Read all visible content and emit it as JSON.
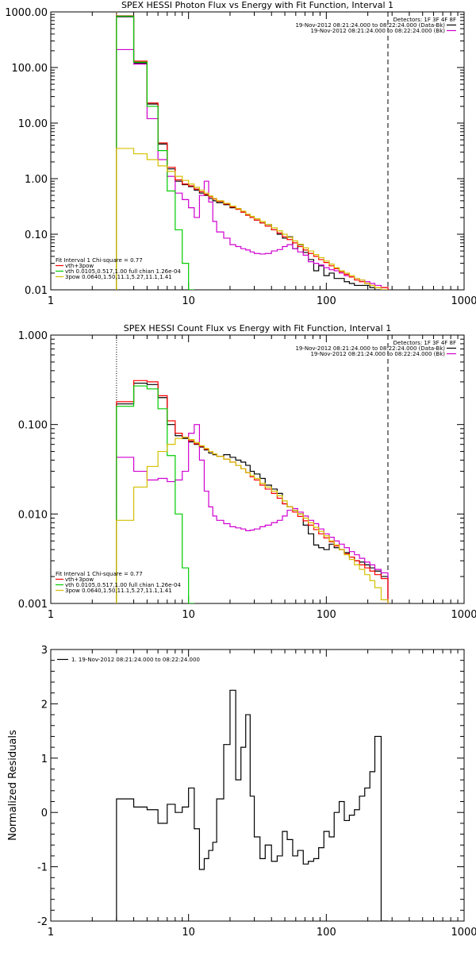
{
  "chart_data": [
    {
      "type": "line",
      "title": "SPEX HESSI Photon Flux vs Energy with Fit Function, Interval 1",
      "xlabel": "",
      "ylabel": "",
      "xscale": "log",
      "yscale": "log",
      "xlim": [
        1,
        1000
      ],
      "ylim": [
        0.01,
        1000
      ],
      "x_ticks": [
        1,
        10,
        100,
        1000
      ],
      "x_tick_labels": [
        "1",
        "10",
        "100",
        "1000"
      ],
      "y_ticks": [
        0.01,
        0.1,
        1,
        10,
        100,
        1000
      ],
      "y_tick_labels": [
        "0.01",
        "0.10",
        "1.00",
        "10.00",
        "100.00",
        "1000.00"
      ],
      "vlines": [
        {
          "x": 3,
          "style": "dotted",
          "color": "#ff8c00"
        },
        {
          "x": 280,
          "style": "dashed",
          "color": "#000000"
        }
      ],
      "legend_top": {
        "placement": "top-right",
        "header": "Detectors: 1F 3F 4F 8F",
        "entries": [
          {
            "text": "19-Nov-2012 08:21:24.000 to 08:22:24.000 (Data-Bk)",
            "color": "#000000"
          },
          {
            "text": "19-Nov-2012 08:21:24.000 to 08:22:24.000 (Bk)",
            "color": "#d000d0"
          }
        ]
      },
      "legend_bottom": {
        "placement": "bottom-left",
        "header": "Fit Interval 1    Chi-square = 0.77",
        "entries": [
          {
            "text": "vth+3pow",
            "color": "#ff0000"
          },
          {
            "text": "vth 0.0105,0.517,1.00  full chian 1.26e-04",
            "color": "#00cc00"
          },
          {
            "text": "3pow 0.0640,1.50,11.1,5.27,11.1,1.41",
            "color": "#d4c000"
          }
        ]
      },
      "edges": [
        3,
        4,
        5,
        6,
        7,
        8,
        9,
        10,
        11,
        12,
        13,
        14,
        15,
        16,
        18,
        20,
        22,
        24,
        26,
        28,
        30,
        33,
        36,
        40,
        44,
        48,
        52,
        57,
        62,
        68,
        74,
        81,
        88,
        96,
        105,
        114,
        124,
        135,
        147,
        160,
        174,
        190,
        207,
        225,
        250,
        280
      ],
      "series": [
        {
          "name": "",
          "color": "#000000",
          "values": [
            820,
            120,
            22,
            4.2,
            1.5,
            0.9,
            0.78,
            0.72,
            0.62,
            0.55,
            0.5,
            0.44,
            0.4,
            0.37,
            0.34,
            0.3,
            0.29,
            0.25,
            0.22,
            0.2,
            0.18,
            0.16,
            0.15,
            0.12,
            0.1,
            0.085,
            0.09,
            0.055,
            0.065,
            0.047,
            0.035,
            0.022,
            0.027,
            0.018,
            0.02,
            0.016,
            0.016,
            0.014,
            0.013,
            0.012,
            0.012,
            0.012,
            0.011,
            0.01,
            0.01
          ]
        },
        {
          "name": "",
          "color": "#d000d0",
          "values": [
            210,
            115,
            12,
            2.2,
            1.1,
            0.55,
            0.42,
            0.3,
            0.2,
            0.5,
            0.9,
            0.38,
            0.17,
            0.11,
            0.085,
            0.065,
            0.06,
            0.055,
            0.052,
            0.048,
            0.045,
            0.044,
            0.045,
            0.05,
            0.053,
            0.06,
            0.065,
            0.055,
            0.048,
            0.042,
            0.032,
            0.03,
            0.028,
            0.025,
            0.023,
            0.022,
            0.02,
            0.018,
            0.017,
            0.016,
            0.015,
            0.014,
            0.013,
            0.012,
            0.011
          ]
        },
        {
          "name": "",
          "color": "#ff0000",
          "values": [
            850,
            130,
            23,
            4.4,
            1.6,
            0.95,
            0.8,
            0.74,
            0.65,
            0.58,
            0.52,
            0.47,
            0.43,
            0.39,
            0.35,
            0.31,
            0.28,
            0.25,
            0.22,
            0.2,
            0.18,
            0.16,
            0.14,
            0.12,
            0.105,
            0.09,
            0.08,
            0.07,
            0.06,
            0.052,
            0.045,
            0.04,
            0.035,
            0.031,
            0.027,
            0.024,
            0.021,
            0.019,
            0.017,
            0.015,
            0.014,
            0.013,
            0.012,
            0.011,
            0.011
          ]
        },
        {
          "name": "",
          "color": "#00cc00",
          "values": [
            840,
            125,
            20,
            3.2,
            0.6,
            0.12,
            0.03,
            0.01
          ]
        },
        {
          "name": "",
          "color": "#d4c000",
          "values": [
            3.5,
            2.8,
            2.2,
            1.7,
            1.35,
            1.1,
            0.93,
            0.8,
            0.7,
            0.62,
            0.55,
            0.49,
            0.44,
            0.4,
            0.36,
            0.32,
            0.29,
            0.26,
            0.23,
            0.21,
            0.19,
            0.17,
            0.15,
            0.13,
            0.115,
            0.1,
            0.088,
            0.076,
            0.066,
            0.057,
            0.05,
            0.043,
            0.038,
            0.033,
            0.029,
            0.025,
            0.022,
            0.02,
            0.018,
            0.016,
            0.015,
            0.013,
            0.012,
            0.011,
            0.01
          ]
        }
      ]
    },
    {
      "type": "line",
      "title": "SPEX HESSI Count Flux vs Energy with Fit Function, Interval 1",
      "xlabel": "",
      "ylabel": "",
      "xscale": "log",
      "yscale": "log",
      "xlim": [
        1,
        1000
      ],
      "ylim": [
        0.001,
        1
      ],
      "x_ticks": [
        1,
        10,
        100,
        1000
      ],
      "x_tick_labels": [
        "1",
        "10",
        "100",
        "1000"
      ],
      "y_ticks": [
        0.001,
        0.01,
        0.1,
        1
      ],
      "y_tick_labels": [
        "0.001",
        "0.010",
        "0.100",
        "1.000"
      ],
      "vlines": [
        {
          "x": 3,
          "style": "dotted",
          "color": "#000000"
        },
        {
          "x": 280,
          "style": "dashed",
          "color": "#000000"
        }
      ],
      "legend_top": {
        "placement": "top-right",
        "header": "Detectors: 1F 3F 4F 8F",
        "entries": [
          {
            "text": "19-Nov-2012 08:21:24.000 to 08:22:24.000 (Data-Bk)",
            "color": "#000000"
          },
          {
            "text": "19-Nov-2012 08:21:24.000 to 08:22:24.000 (Bk)",
            "color": "#d000d0"
          }
        ]
      },
      "legend_bottom": {
        "placement": "bottom-left",
        "header": "Fit Interval 1    Chi-square = 0.77",
        "entries": [
          {
            "text": "vth+3pow",
            "color": "#ff0000"
          },
          {
            "text": "vth 0.0105,0.517,1.00  full chian 1.26e-04",
            "color": "#00cc00"
          },
          {
            "text": "3pow 0.0640,1.50,11.1,5.27,11.1,1.41",
            "color": "#d4c000"
          }
        ]
      },
      "edges": [
        3,
        4,
        5,
        6,
        7,
        8,
        9,
        10,
        11,
        12,
        13,
        14,
        15,
        16,
        18,
        20,
        22,
        24,
        26,
        28,
        30,
        33,
        36,
        40,
        44,
        48,
        52,
        57,
        62,
        68,
        74,
        81,
        88,
        96,
        105,
        114,
        124,
        135,
        147,
        160,
        174,
        190,
        207,
        225,
        250,
        280
      ],
      "series": [
        {
          "name": "",
          "color": "#000000",
          "values": [
            0.17,
            0.29,
            0.28,
            0.2,
            0.1,
            0.075,
            0.07,
            0.064,
            0.06,
            0.056,
            0.052,
            0.048,
            0.046,
            0.044,
            0.046,
            0.043,
            0.04,
            0.038,
            0.035,
            0.03,
            0.028,
            0.025,
            0.021,
            0.019,
            0.017,
            0.013,
            0.012,
            0.011,
            0.01,
            0.0075,
            0.006,
            0.0045,
            0.0042,
            0.004,
            0.0046,
            0.0042,
            0.004,
            0.0037,
            0.0033,
            0.003,
            0.0029,
            0.0027,
            0.0025,
            0.0023,
            0.002
          ]
        },
        {
          "name": "",
          "color": "#d000d0",
          "values": [
            0.043,
            0.03,
            0.024,
            0.025,
            0.023,
            0.024,
            0.03,
            0.08,
            0.1,
            0.04,
            0.018,
            0.012,
            0.0095,
            0.0085,
            0.0078,
            0.0072,
            0.007,
            0.0068,
            0.0065,
            0.0066,
            0.0068,
            0.0072,
            0.0075,
            0.008,
            0.0085,
            0.0095,
            0.011,
            0.0115,
            0.0105,
            0.0095,
            0.0085,
            0.0078,
            0.0068,
            0.006,
            0.0055,
            0.005,
            0.0046,
            0.0042,
            0.0038,
            0.0035,
            0.0032,
            0.0029,
            0.0027,
            0.0024,
            0.0022
          ]
        },
        {
          "name": "",
          "color": "#ff0000",
          "values": [
            0.18,
            0.31,
            0.3,
            0.21,
            0.11,
            0.08,
            0.072,
            0.066,
            0.061,
            0.057,
            0.053,
            0.05,
            0.047,
            0.044,
            0.041,
            0.038,
            0.035,
            0.032,
            0.029,
            0.026,
            0.024,
            0.021,
            0.019,
            0.017,
            0.015,
            0.013,
            0.012,
            0.0105,
            0.0094,
            0.0084,
            0.0075,
            0.0067,
            0.006,
            0.0054,
            0.0049,
            0.0044,
            0.004,
            0.0036,
            0.0033,
            0.003,
            0.0027,
            0.0025,
            0.0023,
            0.0021,
            0.0019
          ]
        },
        {
          "name": "",
          "color": "#00cc00",
          "values": [
            0.16,
            0.27,
            0.25,
            0.15,
            0.045,
            0.01,
            0.0025,
            0.001
          ]
        },
        {
          "name": "",
          "color": "#d4c000",
          "values": [
            0.0085,
            0.02,
            0.034,
            0.05,
            0.06,
            0.07,
            0.072,
            0.068,
            0.063,
            0.058,
            0.054,
            0.05,
            0.047,
            0.044,
            0.041,
            0.038,
            0.035,
            0.032,
            0.029,
            0.027,
            0.025,
            0.022,
            0.02,
            0.018,
            0.016,
            0.014,
            0.012,
            0.011,
            0.01,
            0.009,
            0.008,
            0.0071,
            0.0064,
            0.0057,
            0.005,
            0.0045,
            0.004,
            0.0035,
            0.0031,
            0.0027,
            0.0024,
            0.0021,
            0.0018,
            0.0015,
            0.0011
          ]
        }
      ]
    },
    {
      "type": "line",
      "title": "",
      "xlabel": "",
      "ylabel": "Normalized Residuals",
      "xscale": "log",
      "yscale": "linear",
      "xlim": [
        1,
        1000
      ],
      "ylim": [
        -2,
        3
      ],
      "x_ticks": [
        1,
        10,
        100,
        1000
      ],
      "x_tick_labels": [
        "1",
        "10",
        "100",
        "1000"
      ],
      "y_ticks": [
        -2,
        -1,
        0,
        1,
        2,
        3
      ],
      "y_tick_labels": [
        "-2",
        "-1",
        "0",
        "1",
        "2",
        "3"
      ],
      "vlines": [],
      "legend_top": {
        "placement": "top-left",
        "header": "",
        "entries": [
          {
            "text": "1. 19-Nov-2012 08:21:24.000 to 08:22:24.000",
            "color": "#000000"
          }
        ]
      },
      "edges": [
        3,
        4,
        5,
        6,
        7,
        8,
        9,
        10,
        11,
        12,
        13,
        14,
        15,
        16,
        18,
        20,
        22,
        24,
        26,
        28,
        30,
        33,
        36,
        40,
        44,
        48,
        52,
        57,
        62,
        68,
        74,
        81,
        88,
        96,
        105,
        114,
        124,
        135,
        147,
        160,
        174,
        190,
        207,
        225,
        250,
        280
      ],
      "series": [
        {
          "name": "",
          "color": "#000000",
          "values": [
            0.25,
            0.1,
            0.05,
            -0.2,
            0.15,
            0.0,
            0.1,
            0.45,
            -0.3,
            -1.05,
            -0.85,
            -0.7,
            -0.55,
            0.25,
            1.25,
            2.25,
            0.6,
            1.2,
            1.8,
            0.3,
            -0.45,
            -0.85,
            -0.6,
            -0.9,
            -0.8,
            -0.35,
            -0.5,
            -0.8,
            -0.7,
            -0.95,
            -0.9,
            -0.85,
            -0.65,
            -0.35,
            -0.45,
            0.0,
            0.2,
            -0.15,
            -0.05,
            0.05,
            0.3,
            0.45,
            0.75,
            1.4,
            -2.0
          ]
        }
      ]
    }
  ]
}
